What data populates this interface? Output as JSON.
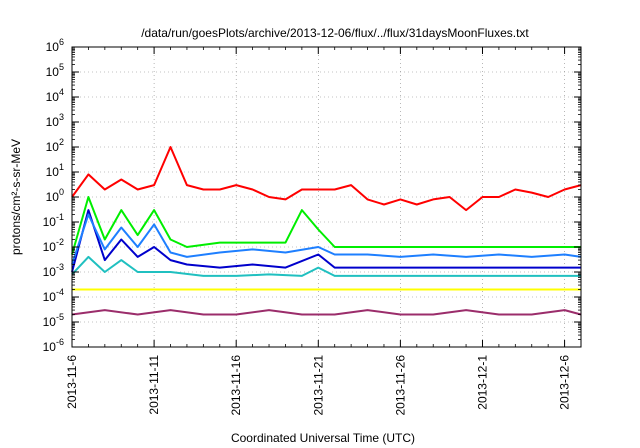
{
  "chart_data": {
    "type": "line",
    "title": "/data/run/goesPlots/archive/2013-12-06/flux/../flux/31daysMoonFluxes.txt",
    "xlabel": "Coordinated Universal Time (UTC)",
    "ylabel": "protons/cm²-s-sr-MeV",
    "yscale": "log",
    "ylim": [
      1e-06,
      1000000.0
    ],
    "xlim": [
      "2013-11-06",
      "2013-12-07"
    ],
    "xticks": [
      "2013-11-6",
      "2013-11-11",
      "2013-11-16",
      "2013-11-21",
      "2013-11-26",
      "2013-12-1",
      "2013-12-6"
    ],
    "yticks": [
      {
        "base": "10",
        "exp": "-6"
      },
      {
        "base": "10",
        "exp": "-5"
      },
      {
        "base": "10",
        "exp": "-4"
      },
      {
        "base": "10",
        "exp": "-3"
      },
      {
        "base": "10",
        "exp": "-2"
      },
      {
        "base": "10",
        "exp": "-1"
      },
      {
        "base": "10",
        "exp": "0"
      },
      {
        "base": "10",
        "exp": "1"
      },
      {
        "base": "10",
        "exp": "2"
      },
      {
        "base": "10",
        "exp": "3"
      },
      {
        "base": "10",
        "exp": "4"
      },
      {
        "base": "10",
        "exp": "5"
      },
      {
        "base": "10",
        "exp": "6"
      }
    ],
    "grid": true,
    "series": [
      {
        "color": "#9b2d6b",
        "x": [
          "2013-11-06",
          "2013-11-08",
          "2013-11-10",
          "2013-11-12",
          "2013-11-14",
          "2013-11-16",
          "2013-11-18",
          "2013-11-20",
          "2013-11-22",
          "2013-11-24",
          "2013-11-26",
          "2013-11-28",
          "2013-11-30",
          "2013-12-02",
          "2013-12-04",
          "2013-12-06",
          "2013-12-07"
        ],
        "values": [
          2e-05,
          3e-05,
          2e-05,
          3e-05,
          2e-05,
          2e-05,
          3e-05,
          2e-05,
          2e-05,
          3e-05,
          2e-05,
          2e-05,
          3e-05,
          2e-05,
          2e-05,
          3e-05,
          2e-05
        ]
      },
      {
        "color": "#ffff00",
        "x": [
          "2013-11-06",
          "2013-11-08",
          "2013-11-10",
          "2013-11-12",
          "2013-11-14",
          "2013-11-16",
          "2013-11-18",
          "2013-11-20",
          "2013-11-22",
          "2013-11-24",
          "2013-11-26",
          "2013-11-28",
          "2013-11-30",
          "2013-12-02",
          "2013-12-04",
          "2013-12-06",
          "2013-12-07"
        ],
        "values": [
          0.0002,
          0.0002,
          0.0002,
          0.0002,
          0.0002,
          0.0002,
          0.0002,
          0.0002,
          0.0002,
          0.0002,
          0.0002,
          0.0002,
          0.0002,
          0.0002,
          0.0002,
          0.0002,
          0.0002
        ]
      },
      {
        "color": "#20c0c0",
        "x": [
          "2013-11-06",
          "2013-11-07",
          "2013-11-08",
          "2013-11-09",
          "2013-11-10",
          "2013-11-11",
          "2013-11-12",
          "2013-11-14",
          "2013-11-16",
          "2013-11-18",
          "2013-11-20",
          "2013-11-21",
          "2013-11-22",
          "2013-11-24",
          "2013-11-26",
          "2013-11-28",
          "2013-11-30",
          "2013-12-02",
          "2013-12-04",
          "2013-12-06",
          "2013-12-07"
        ],
        "values": [
          0.0008,
          0.004,
          0.001,
          0.003,
          0.001,
          0.001,
          0.001,
          0.0007,
          0.0007,
          0.0008,
          0.0007,
          0.0015,
          0.0007,
          0.0007,
          0.0007,
          0.0007,
          0.0007,
          0.0007,
          0.0007,
          0.0007,
          0.0007
        ]
      },
      {
        "color": "#0000cc",
        "x": [
          "2013-11-06",
          "2013-11-07",
          "2013-11-08",
          "2013-11-09",
          "2013-11-10",
          "2013-11-11",
          "2013-11-12",
          "2013-11-13",
          "2013-11-15",
          "2013-11-17",
          "2013-11-19",
          "2013-11-21",
          "2013-11-22",
          "2013-11-24",
          "2013-11-26",
          "2013-11-28",
          "2013-11-30",
          "2013-12-02",
          "2013-12-04",
          "2013-12-06",
          "2013-12-07"
        ],
        "values": [
          0.001,
          0.3,
          0.003,
          0.02,
          0.004,
          0.01,
          0.003,
          0.002,
          0.0015,
          0.002,
          0.0015,
          0.005,
          0.0015,
          0.0015,
          0.0015,
          0.0015,
          0.0015,
          0.0015,
          0.0015,
          0.0015,
          0.0015
        ]
      },
      {
        "color": "#1e7fff",
        "x": [
          "2013-11-06",
          "2013-11-07",
          "2013-11-08",
          "2013-11-09",
          "2013-11-10",
          "2013-11-11",
          "2013-11-12",
          "2013-11-13",
          "2013-11-15",
          "2013-11-17",
          "2013-11-19",
          "2013-11-21",
          "2013-11-22",
          "2013-11-24",
          "2013-11-26",
          "2013-11-28",
          "2013-11-30",
          "2013-12-02",
          "2013-12-04",
          "2013-12-06",
          "2013-12-07"
        ],
        "values": [
          0.002,
          0.2,
          0.008,
          0.06,
          0.01,
          0.08,
          0.006,
          0.004,
          0.006,
          0.008,
          0.006,
          0.01,
          0.005,
          0.005,
          0.004,
          0.005,
          0.004,
          0.005,
          0.004,
          0.005,
          0.004
        ]
      },
      {
        "color": "#00ee00",
        "x": [
          "2013-11-06",
          "2013-11-07",
          "2013-11-08",
          "2013-11-09",
          "2013-11-10",
          "2013-11-11",
          "2013-11-12",
          "2013-11-13",
          "2013-11-15",
          "2013-11-17",
          "2013-11-19",
          "2013-11-20",
          "2013-11-21",
          "2013-11-22",
          "2013-11-24",
          "2013-11-26",
          "2013-11-28",
          "2013-11-30",
          "2013-12-02",
          "2013-12-04",
          "2013-12-06",
          "2013-12-07"
        ],
        "values": [
          0.005,
          1,
          0.02,
          0.3,
          0.03,
          0.3,
          0.02,
          0.01,
          0.015,
          0.015,
          0.015,
          0.3,
          0.05,
          0.01,
          0.01,
          0.01,
          0.01,
          0.01,
          0.01,
          0.01,
          0.01,
          0.01
        ]
      },
      {
        "color": "#ff0000",
        "x": [
          "2013-11-06",
          "2013-11-07",
          "2013-11-08",
          "2013-11-09",
          "2013-11-10",
          "2013-11-11",
          "2013-11-12",
          "2013-11-13",
          "2013-11-14",
          "2013-11-15",
          "2013-11-16",
          "2013-11-17",
          "2013-11-18",
          "2013-11-19",
          "2013-11-20",
          "2013-11-21",
          "2013-11-22",
          "2013-11-23",
          "2013-11-24",
          "2013-11-25",
          "2013-11-26",
          "2013-11-27",
          "2013-11-28",
          "2013-11-29",
          "2013-11-30",
          "2013-12-01",
          "2013-12-02",
          "2013-12-03",
          "2013-12-04",
          "2013-12-05",
          "2013-12-06",
          "2013-12-07"
        ],
        "values": [
          1,
          8,
          2,
          5,
          2,
          3,
          100,
          3,
          2,
          2,
          3,
          2,
          1,
          0.8,
          2,
          2,
          2,
          3,
          0.8,
          0.5,
          0.8,
          0.5,
          0.8,
          1,
          0.3,
          1,
          1,
          2,
          1.5,
          1,
          2,
          3
        ]
      }
    ]
  }
}
